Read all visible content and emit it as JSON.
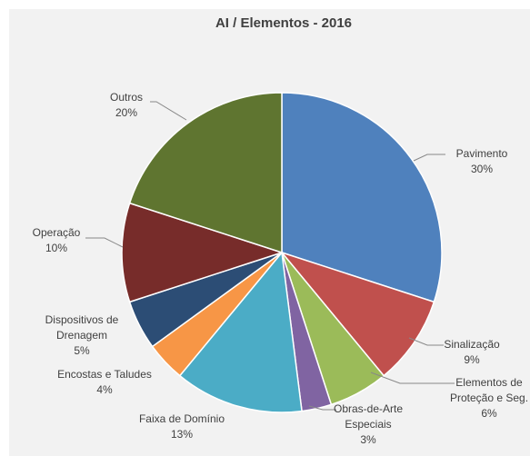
{
  "chart_data": {
    "type": "pie",
    "title": "AI / Elementos - 2016",
    "categories": [
      [
        "Pavimento"
      ],
      [
        "Sinalização"
      ],
      [
        "Elementos de",
        "Proteção e Seg."
      ],
      [
        "Obras-de-Arte",
        "Especiais"
      ],
      [
        "Faixa de Domínio"
      ],
      [
        "Encostas e Taludes"
      ],
      [
        "Dispositivos de",
        "Drenagem"
      ],
      [
        "Operação"
      ],
      [
        "Outros"
      ]
    ],
    "values": [
      30,
      9,
      6,
      3,
      13,
      4,
      5,
      10,
      20
    ],
    "value_labels": [
      "30%",
      "9%",
      "6%",
      "3%",
      "13%",
      "4%",
      "5%",
      "10%",
      "20%"
    ],
    "colors": [
      "#4f81bd",
      "#c0504d",
      "#9bbb59",
      "#8064a2",
      "#4bacc6",
      "#f79646",
      "#2c4d75",
      "#772c2a",
      "#5f7530"
    ]
  }
}
